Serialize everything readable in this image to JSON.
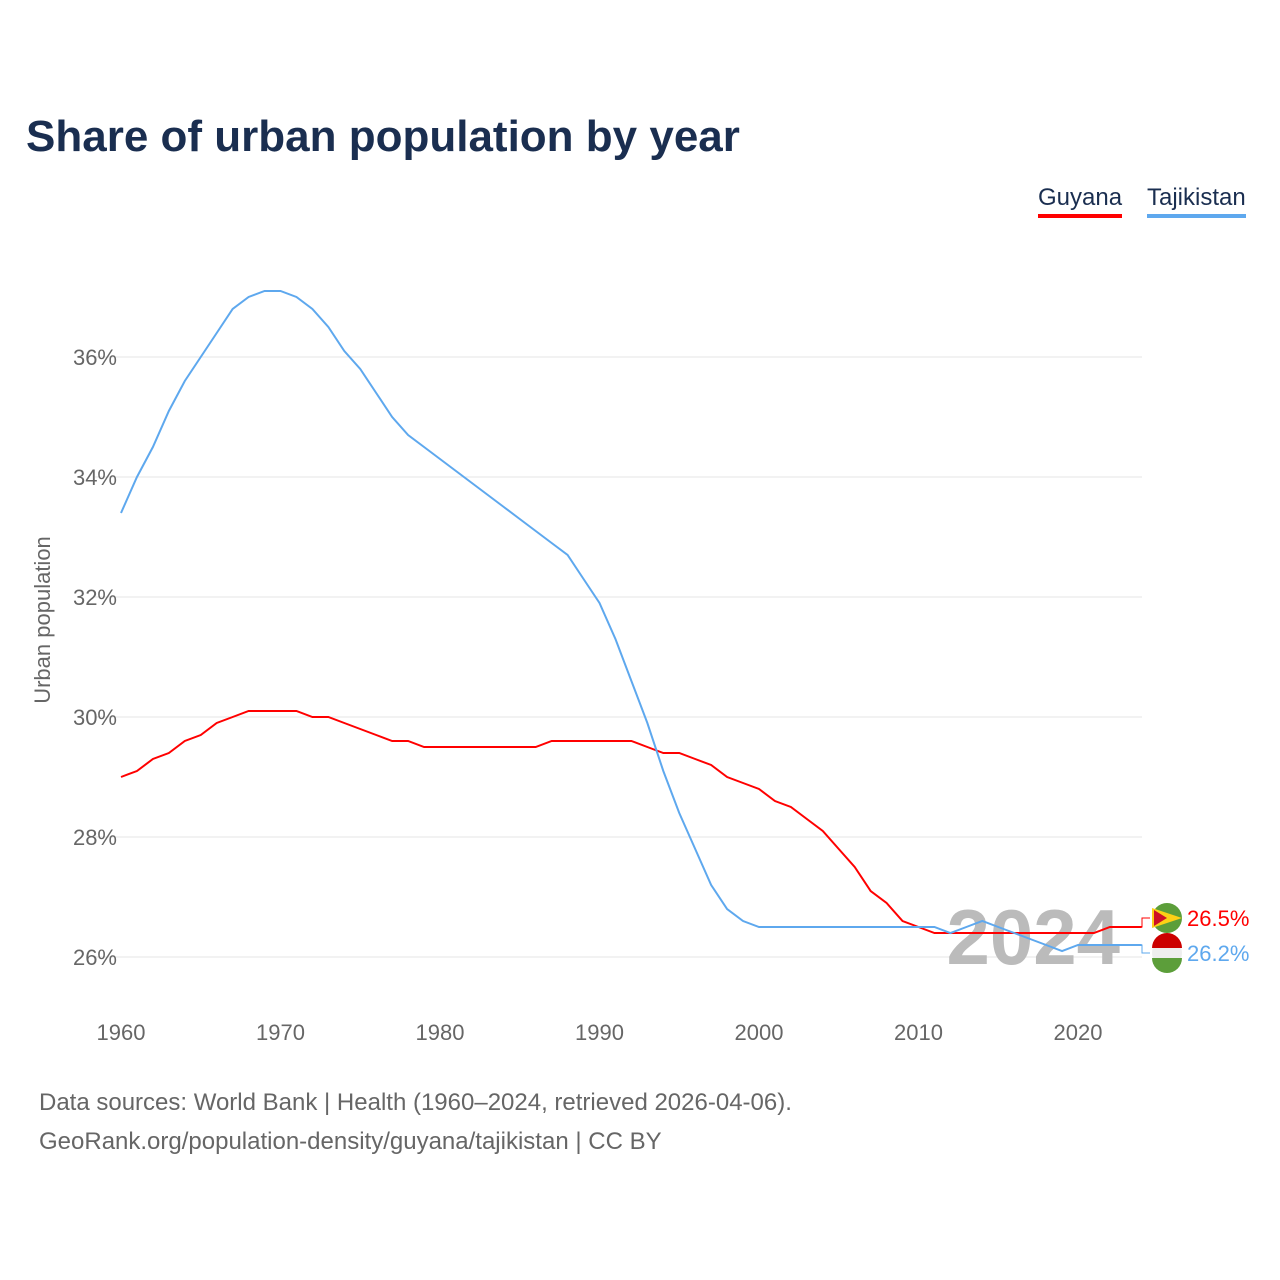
{
  "chart_data": {
    "type": "line",
    "title": "Share of urban population by year",
    "ylabel": "Urban population",
    "xlabel": "",
    "xlim": [
      1960,
      2024
    ],
    "ylim": [
      25.2,
      37.8
    ],
    "x_ticks": [
      1960,
      1970,
      1980,
      1990,
      2000,
      2010,
      2020
    ],
    "y_ticks": [
      26,
      28,
      30,
      32,
      34,
      36
    ],
    "y_tick_labels": [
      "26%",
      "28%",
      "30%",
      "32%",
      "34%",
      "36%"
    ],
    "x_tick_labels": [
      "1960",
      "1970",
      "1980",
      "1990",
      "2000",
      "2010",
      "2020"
    ],
    "grid": true,
    "legend_placement": "top-right",
    "watermark_year": "2024",
    "series": [
      {
        "name": "Guyana",
        "color": "#ff0000",
        "end_label": "26.5%",
        "values": [
          29.0,
          29.1,
          29.3,
          29.4,
          29.6,
          29.7,
          29.9,
          30.0,
          30.1,
          30.1,
          30.1,
          30.1,
          30.0,
          30.0,
          29.9,
          29.8,
          29.7,
          29.6,
          29.6,
          29.5,
          29.5,
          29.5,
          29.5,
          29.5,
          29.5,
          29.5,
          29.5,
          29.6,
          29.6,
          29.6,
          29.6,
          29.6,
          29.6,
          29.5,
          29.4,
          29.4,
          29.3,
          29.2,
          29.0,
          28.9,
          28.8,
          28.6,
          28.5,
          28.3,
          28.1,
          27.8,
          27.5,
          27.1,
          26.9,
          26.6,
          26.5,
          26.4,
          26.4,
          26.4,
          26.4,
          26.4,
          26.4,
          26.4,
          26.4,
          26.4,
          26.4,
          26.4,
          26.5,
          26.5,
          26.5
        ]
      },
      {
        "name": "Tajikistan",
        "color": "#5ea8ee",
        "end_label": "26.2%",
        "values": [
          33.4,
          34.0,
          34.5,
          35.1,
          35.6,
          36.0,
          36.4,
          36.8,
          37.0,
          37.1,
          37.1,
          37.0,
          36.8,
          36.5,
          36.1,
          35.8,
          35.4,
          35.0,
          34.7,
          34.5,
          34.3,
          34.1,
          33.9,
          33.7,
          33.5,
          33.3,
          33.1,
          32.9,
          32.7,
          32.3,
          31.9,
          31.3,
          30.6,
          29.9,
          29.1,
          28.4,
          27.8,
          27.2,
          26.8,
          26.6,
          26.5,
          26.5,
          26.5,
          26.5,
          26.5,
          26.5,
          26.5,
          26.5,
          26.5,
          26.5,
          26.5,
          26.5,
          26.4,
          26.5,
          26.6,
          26.5,
          26.4,
          26.3,
          26.2,
          26.1,
          26.2,
          26.2,
          26.2,
          26.2,
          26.2
        ]
      }
    ]
  },
  "footer": {
    "line1": "Data sources: World Bank | Health (1960–2024, retrieved 2026-04-06).",
    "line2": "GeoRank.org/population-density/guyana/tajikistan | CC BY"
  }
}
